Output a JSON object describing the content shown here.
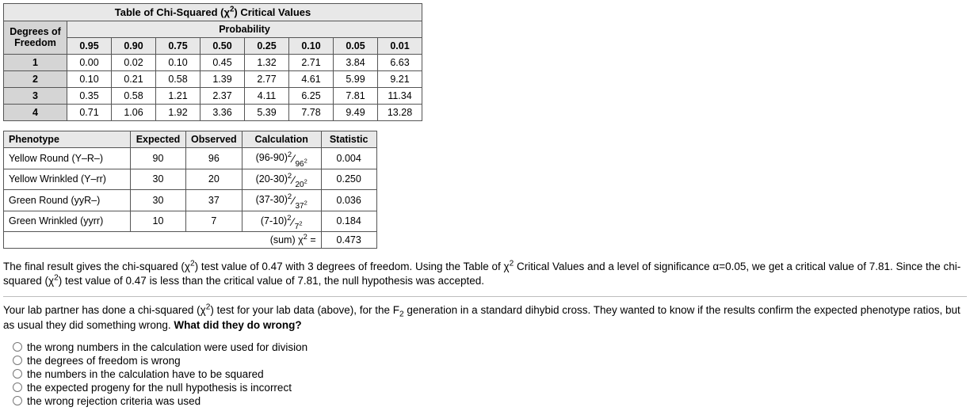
{
  "crit": {
    "title_pre": "Table of Chi-Squared (χ",
    "title_sup": "2",
    "title_post": ") Critical Values",
    "dof_label": "Degrees of\nFreedom",
    "prob_label": "Probability",
    "prob_headers": [
      "0.95",
      "0.90",
      "0.75",
      "0.50",
      "0.25",
      "0.10",
      "0.05",
      "0.01"
    ],
    "rows": [
      {
        "dof": "1",
        "vals": [
          "0.00",
          "0.02",
          "0.10",
          "0.45",
          "1.32",
          "2.71",
          "3.84",
          "6.63"
        ]
      },
      {
        "dof": "2",
        "vals": [
          "0.10",
          "0.21",
          "0.58",
          "1.39",
          "2.77",
          "4.61",
          "5.99",
          "9.21"
        ]
      },
      {
        "dof": "3",
        "vals": [
          "0.35",
          "0.58",
          "1.21",
          "2.37",
          "4.11",
          "6.25",
          "7.81",
          "11.34"
        ]
      },
      {
        "dof": "4",
        "vals": [
          "0.71",
          "1.06",
          "1.92",
          "3.36",
          "5.39",
          "7.78",
          "9.49",
          "13.28"
        ]
      }
    ]
  },
  "pheno": {
    "headers": {
      "ph": "Phenotype",
      "ex": "Expected",
      "ob": "Observed",
      "ca": "Calculation",
      "st": "Statistic"
    },
    "rows": [
      {
        "name": "Yellow Round (Y–R–)",
        "ex": "90",
        "ob": "96",
        "calc_num1": "(96-90)",
        "calc_den": "96",
        "stat": "0.004"
      },
      {
        "name": "Yellow Wrinkled (Y–rr)",
        "ex": "30",
        "ob": "20",
        "calc_num1": "(20-30)",
        "calc_den": "20",
        "stat": "0.250"
      },
      {
        "name": "Green Round (yyR–)",
        "ex": "30",
        "ob": "37",
        "calc_num1": "(37-30)",
        "calc_den": "37",
        "stat": "0.036"
      },
      {
        "name": "Green Wrinkled (yyrr)",
        "ex": "10",
        "ob": "7",
        "calc_num1": "(7-10)",
        "calc_den": "7",
        "stat": "0.184"
      }
    ],
    "sum_label_pre": "(sum) χ",
    "sum_label_sup": "2",
    "sum_label_post": " =",
    "sum_val": "0.473"
  },
  "para1_a": "The final result gives the chi-squared (χ",
  "para1_b": ") test value of 0.47 with 3 degrees of freedom. Using the Table of χ",
  "para1_c": " Critical Values and a level of significance α=0.05, we get a critical value of 7.81. Since the chi-squared (χ",
  "para1_d": ") test value of 0.47 is less than the critical value of 7.81, the null hypothesis was accepted.",
  "para2_a": "Your lab partner has done a chi-squared (χ",
  "para2_b": ") test for your lab data (above), for the F",
  "para2_c": " generation in a standard dihybid cross. They wanted to know if the results confirm the expected phenotype ratios, but as usual they did something wrong. ",
  "para2_q": "What did they do wrong?",
  "options": [
    "the wrong numbers in the calculation were used for division",
    "the degrees of freedom is wrong",
    "the numbers in the calculation have to be squared",
    "the expected progeny for the null hypothesis is incorrect",
    "the wrong rejection criteria was used"
  ],
  "colors": {
    "hdr_bg": "#e8e8e8",
    "dof_bg": "#d5d5d5",
    "border": "#555555",
    "hr": "#bdbdbd",
    "radio_border": "#777777"
  }
}
